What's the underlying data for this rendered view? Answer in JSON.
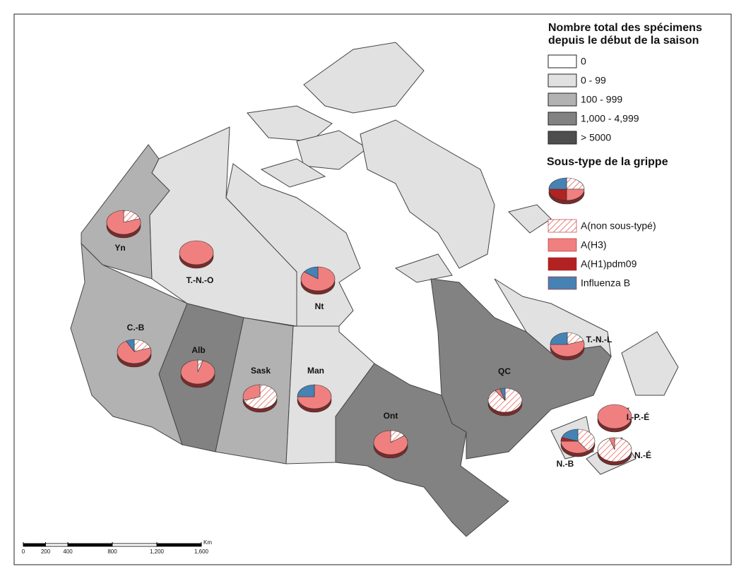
{
  "legend": {
    "title_lines": [
      "Nombre total des spécimens",
      "depuis le début de la saison"
    ],
    "classes": [
      {
        "label": "0",
        "color": "#ffffff"
      },
      {
        "label": "0 - 99",
        "color": "#e1e1e1"
      },
      {
        "label": "100 - 999",
        "color": "#b2b2b2"
      },
      {
        "label": "1,000 - 4,999",
        "color": "#828282"
      },
      {
        "label": "> 5000",
        "color": "#4e4e4e"
      }
    ],
    "subtype_title": "Sous-type de la grippe",
    "subtypes": [
      {
        "name": "A(non sous-typé)",
        "color": "#e8584e"
      },
      {
        "name": "A(H3)",
        "color": "#f08080"
      },
      {
        "name": "A(H1)pdm09",
        "color": "#b22222"
      },
      {
        "name": "Influenza B",
        "color": "#4682b4"
      }
    ]
  },
  "provinces": [
    {
      "label": "Yn",
      "class": 2,
      "pie": [
        20,
        80,
        0,
        0
      ]
    },
    {
      "label": "T.-N.-O",
      "class": 1,
      "pie": [
        0,
        100,
        0,
        0
      ]
    },
    {
      "label": "Nt",
      "class": 1,
      "pie": [
        0,
        85,
        0,
        15
      ]
    },
    {
      "label": "C.-B",
      "class": 2,
      "pie": [
        20,
        72,
        0,
        8
      ]
    },
    {
      "label": "Alb",
      "class": 3,
      "pie": [
        5,
        95,
        0,
        0
      ]
    },
    {
      "label": "Sask",
      "class": 2,
      "pie": [
        70,
        30,
        0,
        0
      ]
    },
    {
      "label": "Man",
      "class": 1,
      "pie": [
        0,
        75,
        0,
        25
      ]
    },
    {
      "label": "Ont",
      "class": 3,
      "pie": [
        15,
        85,
        0,
        0
      ]
    },
    {
      "label": "QC",
      "class": 3,
      "pie": [
        90,
        5,
        0,
        5
      ]
    },
    {
      "label": "T.-N.-L",
      "class": 1,
      "pie": [
        20,
        55,
        0,
        25
      ]
    },
    {
      "label": "I.-P.-É",
      "class": 1,
      "pie": [
        0,
        100,
        0,
        0
      ]
    },
    {
      "label": "N.-B",
      "class": 1,
      "pie": [
        40,
        35,
        5,
        20
      ]
    },
    {
      "label": "N.-É",
      "class": 1,
      "pie": [
        95,
        5,
        0,
        0
      ]
    }
  ],
  "scale_bar": {
    "ticks": [
      0,
      200,
      400,
      800,
      {
        "value": 1200,
        "label": "1,200"
      },
      {
        "value": 1600,
        "label": "1,600"
      }
    ],
    "unit": "Km"
  }
}
